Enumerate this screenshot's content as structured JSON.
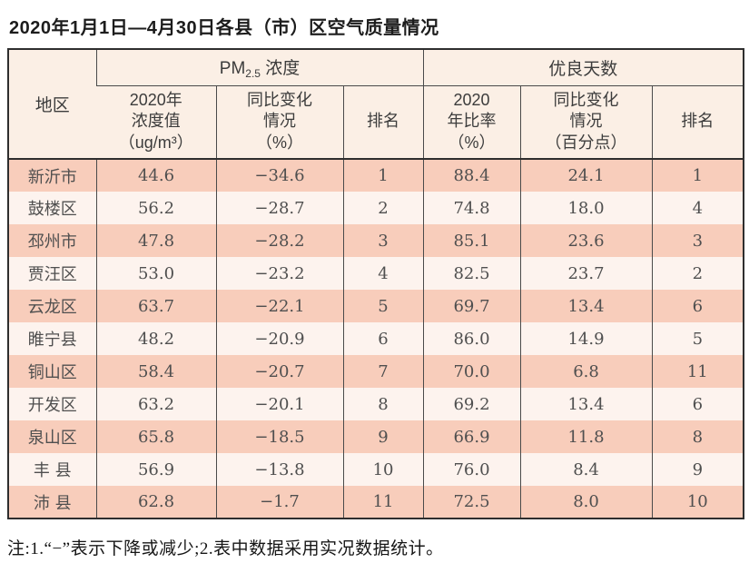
{
  "title": "2020年1月1日—4月30日各县（市）区空气质量情况",
  "footnote": "注:1.“−”表示下降或减少;2.表中数据采用实况数据统计。",
  "table": {
    "header": {
      "region": "地区",
      "pm_group_prefix": "PM",
      "pm_group_sub": "2.5",
      "pm_group_suffix": " 浓度",
      "pm_value": "2020年\n浓度值\n（ug/m³）",
      "pm_change": "同比变化\n情况\n（%）",
      "pm_rank": "排名",
      "good_group": "优良天数",
      "good_rate": "2020\n年比率\n（%）",
      "good_change": "同比变化\n情况\n（百分点）",
      "good_rank": "排名"
    },
    "rows": [
      {
        "region": "新沂市",
        "pm_value": "44.6",
        "pm_change": "−34.6",
        "pm_rank": "1",
        "good_rate": "88.4",
        "good_change": "24.1",
        "good_rank": "1"
      },
      {
        "region": "鼓楼区",
        "pm_value": "56.2",
        "pm_change": "−28.7",
        "pm_rank": "2",
        "good_rate": "74.8",
        "good_change": "18.0",
        "good_rank": "4"
      },
      {
        "region": "邳州市",
        "pm_value": "47.8",
        "pm_change": "−28.2",
        "pm_rank": "3",
        "good_rate": "85.1",
        "good_change": "23.6",
        "good_rank": "3"
      },
      {
        "region": "贾汪区",
        "pm_value": "53.0",
        "pm_change": "−23.2",
        "pm_rank": "4",
        "good_rate": "82.5",
        "good_change": "23.7",
        "good_rank": "2"
      },
      {
        "region": "云龙区",
        "pm_value": "63.7",
        "pm_change": "−22.1",
        "pm_rank": "5",
        "good_rate": "69.7",
        "good_change": "13.4",
        "good_rank": "6"
      },
      {
        "region": "睢宁县",
        "pm_value": "48.2",
        "pm_change": "−20.9",
        "pm_rank": "6",
        "good_rate": "86.0",
        "good_change": "14.9",
        "good_rank": "5"
      },
      {
        "region": "铜山区",
        "pm_value": "58.4",
        "pm_change": "−20.7",
        "pm_rank": "7",
        "good_rate": "70.0",
        "good_change": "6.8",
        "good_rank": "11"
      },
      {
        "region": "开发区",
        "pm_value": "63.2",
        "pm_change": "−20.1",
        "pm_rank": "8",
        "good_rate": "69.2",
        "good_change": "13.4",
        "good_rank": "6"
      },
      {
        "region": "泉山区",
        "pm_value": "65.8",
        "pm_change": "−18.5",
        "pm_rank": "9",
        "good_rate": "66.9",
        "good_change": "11.8",
        "good_rank": "8"
      },
      {
        "region": "丰 县",
        "pm_value": "56.9",
        "pm_change": "−13.8",
        "pm_rank": "10",
        "good_rate": "76.0",
        "good_change": "8.4",
        "good_rank": "9"
      },
      {
        "region": "沛 县",
        "pm_value": "62.8",
        "pm_change": "−1.7",
        "pm_rank": "11",
        "good_rate": "72.5",
        "good_change": "8.0",
        "good_rank": "10"
      }
    ]
  },
  "colors": {
    "row_odd_bg": "#f8cdbb",
    "row_even_bg": "#fdf3ee",
    "header_bg": "#fbefe5",
    "border_dark": "#2e2e2e",
    "border_inner": "#4a4a4a",
    "text_data": "#4f4f4f",
    "text_header": "#3c3c3c",
    "text_title": "#1c1c1c"
  }
}
